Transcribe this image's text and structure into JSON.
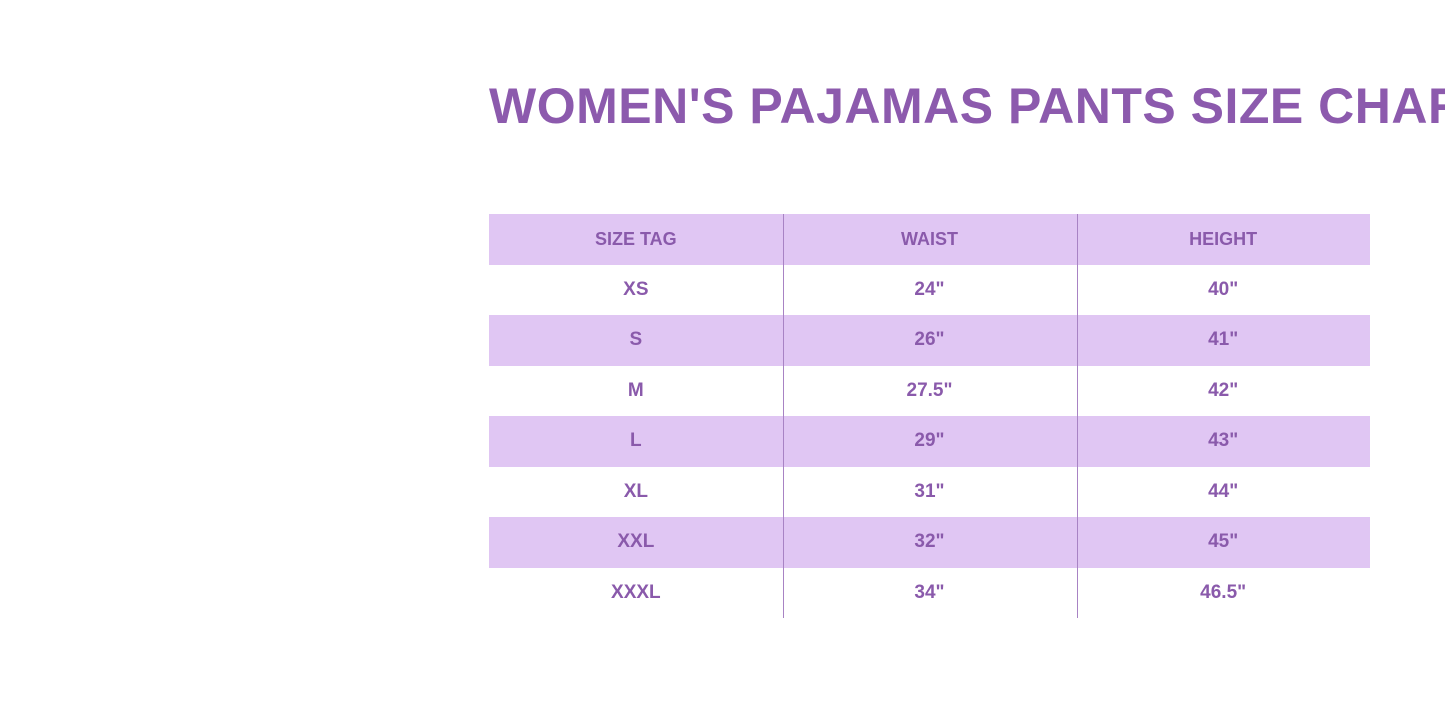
{
  "title": "WOMEN'S PAJAMAS PANTS SIZE CHART",
  "colors": {
    "title": "#8c5aad",
    "band": "#e0c6f3",
    "text": "#8a5aab"
  },
  "table": {
    "headers": [
      "SIZE TAG",
      "WAIST",
      "HEIGHT"
    ],
    "rows": [
      [
        "XS",
        "24\"",
        "40\""
      ],
      [
        "S",
        "26\"",
        "41\""
      ],
      [
        "M",
        "27.5\"",
        "42\""
      ],
      [
        "L",
        "29\"",
        "43\""
      ],
      [
        "XL",
        "31\"",
        "44\""
      ],
      [
        "XXL",
        "32\"",
        "45\""
      ],
      [
        "XXXL",
        "34\"",
        "46.5\""
      ]
    ]
  }
}
